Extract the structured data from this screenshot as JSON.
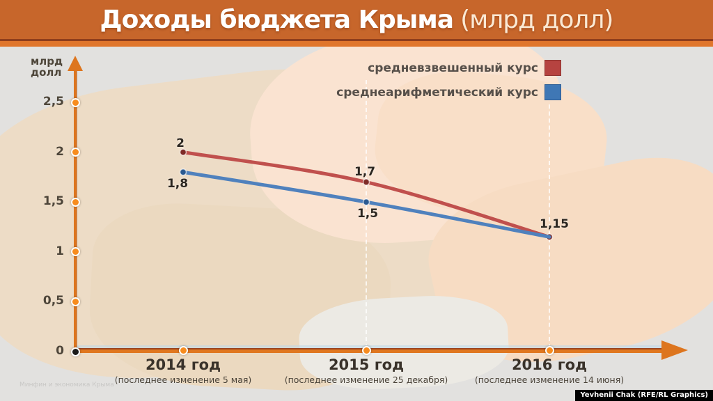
{
  "header": {
    "title_main": "Доходы бюджета Крыма",
    "title_unit": "(млрд долл)"
  },
  "colors": {
    "header_bg": "#C7662B",
    "axis_orange": "#DD751E",
    "tick_dot": "#F78C1E",
    "series_red": "#C0504D",
    "series_blue": "#4F81BD",
    "legend_red_swatch": "#B64340",
    "legend_blue_swatch": "#3F77B5",
    "text_dark": "#39322A"
  },
  "chart_data": {
    "type": "line",
    "title": "Доходы бюджета Крыма (млрд долл)",
    "ylabel": "млрд\nдолл",
    "xlabel": "",
    "ylim": [
      0,
      2.7
    ],
    "y_ticks": [
      "0",
      "0,5",
      "1",
      "1,5",
      "2",
      "2,5"
    ],
    "y_tick_values": [
      0,
      0.5,
      1,
      1.5,
      2,
      2.5
    ],
    "categories": [
      "2014 год",
      "2015 год",
      "2016 год"
    ],
    "category_sublabels": [
      "(последнее изменение 5 мая)",
      "(последнее изменение 25 декабря)",
      "(последнее изменение 14 июня)"
    ],
    "grid": "dashed white vertical gridlines at 2015 and 2016",
    "legend_position": "top-right",
    "series": [
      {
        "name": "средневзвешенный курс",
        "color": "#C0504D",
        "marker_color": "#7E2B27",
        "values": [
          2,
          1.7,
          1.15
        ],
        "point_labels": [
          "2",
          "1,7",
          "1,15"
        ]
      },
      {
        "name": "среднеарифметический курс",
        "color": "#4F81BD",
        "marker_color": "#2B5A91",
        "values": [
          1.8,
          1.5,
          1.15
        ],
        "point_labels": [
          "1,8",
          "1,5",
          ""
        ]
      }
    ]
  },
  "footer": {
    "source_note": "Минфин и экономика Крыма",
    "credit": "Yevhenii Chak (RFE/RL Graphics)"
  }
}
